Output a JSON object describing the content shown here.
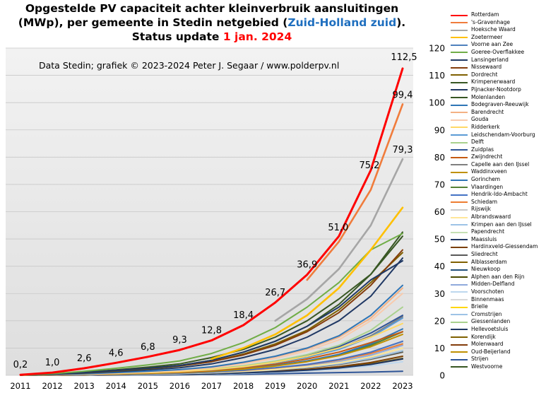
{
  "title": {
    "line1": "Opgestelde PV capaciteit achter kleinverbruik aansluitingen",
    "line2_pre": "(MWp), per gemeente in Stedin netgebied (",
    "line2_region": "Zuid-Holland zuid",
    "line2_post": ").",
    "line3_pre": "Status update ",
    "line3_date": "1 jan. 2024"
  },
  "credit": "Data Stedin; grafiek © 2023-2024 Peter J. Segaar / www.polderpv.nl",
  "chart_data": {
    "type": "line",
    "x": [
      "2011",
      "2012",
      "2013",
      "2014",
      "2015",
      "2016",
      "2017",
      "2018",
      "2019",
      "2020",
      "2021",
      "2022",
      "2023"
    ],
    "ylim": [
      0,
      120
    ],
    "yticks": [
      "0",
      "10",
      "20",
      "30",
      "40",
      "50",
      "60",
      "70",
      "80",
      "90",
      "100",
      "110",
      "120"
    ],
    "y_axis_side": "right",
    "grid": "horizontal",
    "legend_position": "right",
    "series": [
      {
        "name": "Rotterdam",
        "color": "#ff0000",
        "values": [
          0.2,
          1.0,
          2.6,
          4.6,
          6.8,
          9.3,
          12.8,
          18.4,
          26.7,
          36.9,
          51.0,
          75.2,
          112.5
        ]
      },
      {
        "name": "'s-Gravenhage",
        "color": "#f07c3c",
        "values": [
          null,
          null,
          null,
          null,
          null,
          null,
          null,
          null,
          null,
          35.0,
          49.0,
          68.0,
          99.4
        ]
      },
      {
        "name": "Hoeksche Waard",
        "color": "#a6a6a6",
        "values": [
          null,
          null,
          null,
          null,
          null,
          null,
          null,
          null,
          20.0,
          28.0,
          39.0,
          55.0,
          79.3
        ]
      },
      {
        "name": "Zoetermeer",
        "color": "#ffc000",
        "values": [
          null,
          null,
          null,
          null,
          null,
          null,
          6.0,
          10.0,
          15.0,
          22.0,
          32.0,
          46.0,
          61.5
        ]
      },
      {
        "name": "Voorne aan Zee",
        "color": "#4f81bd",
        "values": [
          null,
          null,
          null,
          null,
          null,
          null,
          null,
          null,
          null,
          null,
          null,
          null,
          null
        ]
      },
      {
        "name": "Goeree-Overflakkee",
        "color": "#70ad47",
        "values": [
          0.1,
          0.6,
          1.5,
          2.6,
          3.8,
          5.3,
          8.0,
          12.0,
          17.5,
          25.0,
          34.0,
          46.0,
          52.0
        ]
      },
      {
        "name": "Lansingerland",
        "color": "#1f3864",
        "values": [
          0.1,
          0.4,
          1.0,
          1.8,
          2.6,
          3.6,
          5.5,
          8.5,
          12.5,
          18.0,
          25.0,
          35.0,
          42.0
        ]
      },
      {
        "name": "Nissewaard",
        "color": "#843c0c",
        "values": [
          0.1,
          0.4,
          1.0,
          1.8,
          2.6,
          3.5,
          5.0,
          7.5,
          11.0,
          16.0,
          23.0,
          33.0,
          46.0
        ]
      },
      {
        "name": "Dordrecht",
        "color": "#7f6000",
        "values": [
          0.1,
          0.4,
          0.9,
          1.6,
          2.4,
          3.4,
          5.0,
          7.8,
          11.5,
          16.5,
          24.0,
          34.0,
          45.0
        ]
      },
      {
        "name": "Krimpenerwaard",
        "color": "#385723",
        "values": [
          0.1,
          0.5,
          1.2,
          2.0,
          3.0,
          4.2,
          6.5,
          9.5,
          14.0,
          20.0,
          28.0,
          37.0,
          51.0
        ]
      },
      {
        "name": "Pijnacker-Nootdorp",
        "color": "#203864",
        "values": [
          0.1,
          0.3,
          0.8,
          1.4,
          2.0,
          2.8,
          4.2,
          6.5,
          9.5,
          14.0,
          20.0,
          29.0,
          43.0
        ]
      },
      {
        "name": "Molenlanden",
        "color": "#375623",
        "values": [
          0.1,
          0.4,
          1.0,
          1.8,
          2.6,
          3.6,
          5.5,
          8.5,
          12.5,
          18.0,
          26.0,
          37.0,
          52.5
        ]
      },
      {
        "name": "Bodegraven-Reeuwijk",
        "color": "#2e75b6",
        "values": [
          0.1,
          0.3,
          0.6,
          1.0,
          1.5,
          2.1,
          3.1,
          4.8,
          7.0,
          10.0,
          14.5,
          22.0,
          33.0
        ]
      },
      {
        "name": "Barendrecht",
        "color": "#f4b183",
        "values": [
          0.1,
          0.3,
          0.6,
          1.0,
          1.5,
          2.1,
          3.0,
          4.7,
          6.8,
          9.7,
          14.0,
          21.0,
          32.0
        ]
      },
      {
        "name": "Gouda",
        "color": "#f8cbad",
        "values": [
          0.1,
          0.2,
          0.5,
          0.9,
          1.3,
          1.8,
          2.7,
          4.2,
          6.2,
          9.0,
          13.0,
          20.0,
          30.0
        ]
      },
      {
        "name": "Ridderkerk",
        "color": "#ffd966",
        "values": [
          0.0,
          0.2,
          0.4,
          0.7,
          1.0,
          1.4,
          2.1,
          3.2,
          4.8,
          7.0,
          10.0,
          14.0,
          19.0
        ]
      },
      {
        "name": "Leidschendam-Voorburg",
        "color": "#5b9bd5",
        "values": [
          0.0,
          0.2,
          0.4,
          0.7,
          1.0,
          1.4,
          2.0,
          3.1,
          4.6,
          6.6,
          9.5,
          14.0,
          21.0
        ]
      },
      {
        "name": "Delft",
        "color": "#a9d18e",
        "values": [
          0.0,
          0.2,
          0.4,
          0.8,
          1.1,
          1.5,
          2.3,
          3.5,
          5.2,
          7.6,
          11.0,
          16.5,
          25.0
        ]
      },
      {
        "name": "Zuidplas",
        "color": "#2f5597",
        "values": [
          0.0,
          0.2,
          0.4,
          0.8,
          1.1,
          1.5,
          2.2,
          3.4,
          5.0,
          7.2,
          10.5,
          15.5,
          22.0
        ]
      },
      {
        "name": "Zwijndrecht",
        "color": "#c55a11",
        "values": [
          0.0,
          0.1,
          0.3,
          0.6,
          0.9,
          1.2,
          1.8,
          2.8,
          4.1,
          6.0,
          8.5,
          12.0,
          16.0
        ]
      },
      {
        "name": "Capelle aan den IJssel",
        "color": "#7f7f7f",
        "values": [
          0.0,
          0.2,
          0.4,
          0.7,
          1.0,
          1.4,
          2.1,
          3.2,
          4.7,
          6.8,
          9.8,
          14.5,
          21.5
        ]
      },
      {
        "name": "Waddinxveen",
        "color": "#bf9000",
        "values": [
          0.0,
          0.1,
          0.3,
          0.5,
          0.7,
          1.0,
          1.5,
          2.3,
          3.4,
          5.0,
          7.2,
          10.5,
          15.0
        ]
      },
      {
        "name": "Gorinchem",
        "color": "#2e74b5",
        "values": [
          0.0,
          0.1,
          0.3,
          0.5,
          0.8,
          1.1,
          1.6,
          2.5,
          3.7,
          5.3,
          7.7,
          11.5,
          17.0
        ]
      },
      {
        "name": "Vlaardingen",
        "color": "#548235",
        "values": [
          0.0,
          0.1,
          0.3,
          0.5,
          0.8,
          1.1,
          1.6,
          2.5,
          3.6,
          5.2,
          7.5,
          11.0,
          16.0
        ]
      },
      {
        "name": "Hendrik-Ido-Ambacht",
        "color": "#4472c4",
        "values": [
          0.0,
          0.1,
          0.2,
          0.4,
          0.6,
          0.8,
          1.2,
          1.9,
          2.8,
          4.0,
          5.8,
          8.5,
          12.5
        ]
      },
      {
        "name": "Schiedam",
        "color": "#ed7d31",
        "values": [
          0.0,
          0.1,
          0.2,
          0.4,
          0.6,
          0.8,
          1.2,
          1.8,
          2.7,
          3.9,
          5.6,
          8.0,
          11.5
        ]
      },
      {
        "name": "Rijswijk",
        "color": "#c9c9c9",
        "values": [
          0.0,
          0.1,
          0.2,
          0.4,
          0.6,
          0.8,
          1.2,
          1.9,
          2.8,
          4.0,
          5.8,
          8.5,
          12.0
        ]
      },
      {
        "name": "Albrandswaard",
        "color": "#ffe699",
        "values": [
          0.0,
          0.1,
          0.2,
          0.3,
          0.5,
          0.7,
          1.0,
          1.5,
          2.2,
          3.2,
          4.6,
          6.8,
          10.0
        ]
      },
      {
        "name": "Krimpen aan den IJssel",
        "color": "#9dc3e6",
        "values": [
          0.0,
          0.1,
          0.2,
          0.3,
          0.4,
          0.6,
          0.9,
          1.4,
          2.0,
          2.9,
          4.2,
          6.2,
          9.0
        ]
      },
      {
        "name": "Papendrecht",
        "color": "#c5e0b4",
        "values": [
          0.0,
          0.1,
          0.2,
          0.3,
          0.5,
          0.7,
          1.0,
          1.5,
          2.2,
          3.2,
          4.6,
          6.8,
          10.0
        ]
      },
      {
        "name": "Maassluis",
        "color": "#203864",
        "values": [
          0.0,
          0.1,
          0.1,
          0.2,
          0.3,
          0.4,
          0.6,
          0.9,
          1.3,
          1.9,
          2.7,
          4.0,
          6.0
        ]
      },
      {
        "name": "Hardinxveld-Giessendam",
        "color": "#7b3f00",
        "values": [
          0.0,
          0.1,
          0.1,
          0.2,
          0.3,
          0.4,
          0.6,
          1.0,
          1.5,
          2.2,
          3.2,
          4.7,
          7.0
        ]
      },
      {
        "name": "Sliedrecht",
        "color": "#595959",
        "values": [
          0.0,
          0.1,
          0.2,
          0.3,
          0.4,
          0.6,
          0.9,
          1.3,
          1.9,
          2.8,
          4.0,
          5.9,
          8.5
        ]
      },
      {
        "name": "Alblasserdam",
        "color": "#806000",
        "values": [
          0.0,
          0.1,
          0.1,
          0.2,
          0.3,
          0.4,
          0.6,
          0.9,
          1.4,
          2.0,
          2.9,
          4.2,
          6.2
        ]
      },
      {
        "name": "Nieuwkoop",
        "color": "#1f4e79",
        "values": [
          0.0,
          0.1,
          0.3,
          0.5,
          0.7,
          1.0,
          1.5,
          2.4,
          3.6,
          5.2,
          7.5,
          11.0,
          16.0
        ]
      },
      {
        "name": "Alphen aan den Rijn",
        "color": "#4b4b00",
        "values": [
          null,
          null,
          null,
          null,
          null,
          null,
          null,
          null,
          null,
          null,
          null,
          null,
          null
        ]
      },
      {
        "name": "Midden-Delfland",
        "color": "#8faadc",
        "values": [
          0.0,
          0.1,
          0.2,
          0.3,
          0.5,
          0.7,
          1.0,
          1.6,
          2.4,
          3.5,
          5.0,
          7.4,
          11.0
        ]
      },
      {
        "name": "Voorschoten",
        "color": "#bdd7ee",
        "values": [
          0.0,
          0.0,
          0.1,
          0.2,
          0.2,
          0.3,
          0.5,
          0.7,
          1.1,
          1.6,
          2.3,
          3.4,
          5.0
        ]
      },
      {
        "name": "Binnenmaas",
        "color": "#d9d9d9",
        "values": [
          null,
          null,
          null,
          null,
          null,
          null,
          null,
          null,
          null,
          null,
          null,
          null,
          null
        ]
      },
      {
        "name": "Brielle",
        "color": "#ffd700",
        "values": [
          0.0,
          0.1,
          0.2,
          0.3,
          0.4,
          0.6,
          0.9,
          1.3,
          1.9,
          2.8,
          4.0,
          5.9,
          8.5
        ]
      },
      {
        "name": "Cromstrijen",
        "color": "#9dc3e6",
        "values": [
          0.0,
          0.1,
          0.1,
          0.2,
          0.3,
          0.4,
          0.6,
          0.9,
          1.4,
          2.0,
          2.9,
          4.3,
          6.3
        ]
      },
      {
        "name": "Giessenlanden",
        "color": "#a9d18e",
        "values": [
          null,
          null,
          null,
          null,
          null,
          null,
          null,
          null,
          null,
          null,
          null,
          null,
          null
        ]
      },
      {
        "name": "Hellevoetsluis",
        "color": "#1f3864",
        "values": [
          0.0,
          0.1,
          0.2,
          0.3,
          0.5,
          0.7,
          1.0,
          1.5,
          2.2,
          3.2,
          4.6,
          6.8,
          10.0
        ]
      },
      {
        "name": "Korendijk",
        "color": "#7f6000",
        "values": [
          null,
          null,
          null,
          null,
          null,
          null,
          null,
          null,
          null,
          null,
          null,
          null,
          null
        ]
      },
      {
        "name": "Molenwaard",
        "color": "#833c0b",
        "values": [
          null,
          null,
          null,
          null,
          null,
          null,
          null,
          null,
          null,
          null,
          null,
          null,
          null
        ]
      },
      {
        "name": "Oud-Beijerland",
        "color": "#bf9000",
        "values": [
          0.0,
          0.1,
          0.2,
          0.3,
          0.4,
          0.6,
          0.9,
          1.4,
          2.0,
          2.9,
          4.2,
          6.2,
          9.0
        ]
      },
      {
        "name": "Strijen",
        "color": "#2f5597",
        "values": [
          0.0,
          0.0,
          0.1,
          0.1,
          0.1,
          0.2,
          0.3,
          0.4,
          0.6,
          0.8,
          1.0,
          1.2,
          1.5
        ]
      },
      {
        "name": "Westvoorne",
        "color": "#375623",
        "values": [
          null,
          null,
          null,
          null,
          null,
          null,
          null,
          null,
          null,
          null,
          null,
          null,
          null
        ]
      }
    ],
    "data_labels": {
      "series": "Rotterdam",
      "labels": [
        "0,2",
        "1,0",
        "2,6",
        "4,6",
        "6,8",
        "9,3",
        "12,8",
        "18,4",
        "26,7",
        "36,9",
        "51,0",
        "75,2",
        "112,5"
      ]
    },
    "extra_labels": [
      {
        "series": "'s-Gravenhage",
        "x": "2023",
        "text": "99,4"
      },
      {
        "series": "Hoeksche Waard",
        "x": "2023",
        "text": "79,3"
      }
    ]
  }
}
